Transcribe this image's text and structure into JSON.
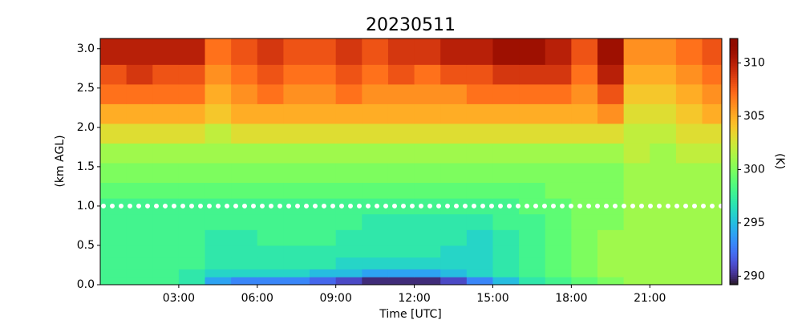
{
  "chart_data": {
    "type": "heatmap",
    "title": "20230511",
    "xlabel": "Time [UTC]",
    "ylabel": "(km AGL)",
    "colorbar_label": "(K)",
    "colormap": "turbo",
    "x_edges": [
      0,
      1,
      2,
      3,
      4,
      5,
      6,
      7,
      8,
      9,
      10,
      11,
      12,
      13,
      14,
      15,
      16,
      17,
      18,
      19,
      20,
      21,
      22,
      23,
      23.75
    ],
    "y_edges": [
      0,
      0.1,
      0.2,
      0.35,
      0.5,
      0.7,
      0.9,
      1.1,
      1.3,
      1.55,
      1.8,
      2.05,
      2.3,
      2.55,
      2.8,
      3.13
    ],
    "values": [
      [
        298,
        298,
        298,
        297,
        294,
        293,
        293,
        293,
        292,
        291,
        290,
        290,
        290,
        291,
        293,
        295,
        297,
        298,
        299,
        300,
        301,
        301,
        301,
        301
      ],
      [
        298,
        298,
        298,
        297,
        296,
        296,
        296,
        296,
        295,
        295,
        294,
        294,
        294,
        295,
        296,
        297,
        298,
        299,
        300,
        301,
        301,
        301,
        301,
        301
      ],
      [
        298,
        298,
        298,
        298,
        297,
        297,
        297,
        297,
        297,
        296,
        296,
        296,
        296,
        296,
        296,
        297,
        298,
        299,
        300,
        301,
        301,
        301,
        301,
        301
      ],
      [
        298,
        298,
        298,
        298,
        297,
        297,
        297,
        297,
        297,
        297,
        297,
        297,
        297,
        296,
        296,
        297,
        298,
        299,
        300,
        301,
        301,
        301,
        301,
        301
      ],
      [
        298,
        298,
        298,
        298,
        297,
        297,
        298,
        298,
        298,
        297,
        297,
        297,
        297,
        297,
        296,
        297,
        298,
        299,
        300,
        301,
        301,
        301,
        301,
        301
      ],
      [
        298,
        298,
        298,
        298,
        298,
        298,
        298,
        298,
        298,
        298,
        297,
        297,
        297,
        297,
        297,
        298,
        298,
        299,
        300,
        300,
        301,
        301,
        301,
        301
      ],
      [
        298,
        298,
        298,
        298,
        298,
        298,
        298,
        298,
        298,
        298,
        298,
        298,
        298,
        298,
        298,
        298,
        299,
        299,
        300,
        300,
        301,
        301,
        301,
        301
      ],
      [
        299,
        299,
        299,
        299,
        299,
        299,
        299,
        299,
        299,
        299,
        299,
        299,
        299,
        299,
        299,
        299,
        299,
        300,
        300,
        300,
        301,
        301,
        301,
        301
      ],
      [
        300,
        300,
        300,
        300,
        300,
        300,
        300,
        300,
        300,
        300,
        300,
        300,
        300,
        300,
        300,
        300,
        300,
        300,
        300,
        300,
        301,
        301,
        301,
        301
      ],
      [
        301,
        301,
        301,
        301,
        301,
        301,
        301,
        301,
        301,
        301,
        301,
        301,
        301,
        301,
        301,
        301,
        301,
        301,
        301,
        301,
        302,
        301,
        302,
        302
      ],
      [
        303,
        303,
        303,
        303,
        302,
        303,
        303,
        303,
        303,
        303,
        303,
        303,
        303,
        303,
        303,
        303,
        303,
        303,
        303,
        303,
        302,
        302,
        303,
        303
      ],
      [
        305,
        305,
        305,
        305,
        304,
        305,
        305,
        305,
        305,
        305,
        305,
        305,
        305,
        305,
        305,
        305,
        305,
        305,
        305,
        306,
        303,
        303,
        304,
        305
      ],
      [
        307,
        307,
        307,
        307,
        305,
        306,
        307,
        306,
        306,
        307,
        306,
        306,
        306,
        306,
        307,
        307,
        307,
        307,
        306,
        308,
        304,
        304,
        305,
        306
      ],
      [
        308,
        309,
        308,
        308,
        306,
        307,
        308,
        307,
        307,
        308,
        307,
        308,
        307,
        308,
        308,
        309,
        309,
        309,
        307,
        310,
        305,
        305,
        306,
        307
      ],
      [
        310,
        310,
        310,
        310,
        307,
        308,
        309,
        308,
        308,
        309,
        308,
        309,
        309,
        310,
        310,
        311,
        311,
        310,
        308,
        311,
        306,
        306,
        307,
        308
      ]
    ],
    "xlim": [
      0,
      23.75
    ],
    "xticks": [
      {
        "value": 3,
        "label": "03:00"
      },
      {
        "value": 6,
        "label": "06:00"
      },
      {
        "value": 9,
        "label": "09:00"
      },
      {
        "value": 12,
        "label": "12:00"
      },
      {
        "value": 15,
        "label": "15:00"
      },
      {
        "value": 18,
        "label": "18:00"
      },
      {
        "value": 21,
        "label": "21:00"
      }
    ],
    "ylim": [
      0,
      3.13
    ],
    "yticks": [
      {
        "value": 0,
        "label": "0.0"
      },
      0.5,
      {
        "value": 1,
        "label": "1.0"
      },
      1.5,
      {
        "value": 2,
        "label": "2.0"
      },
      2.5,
      {
        "value": 3,
        "label": "3.0"
      }
    ],
    "clim": [
      289.2,
      312.3
    ],
    "cticks": [
      290,
      295,
      300,
      305,
      310
    ],
    "reference_line": 1.0
  }
}
